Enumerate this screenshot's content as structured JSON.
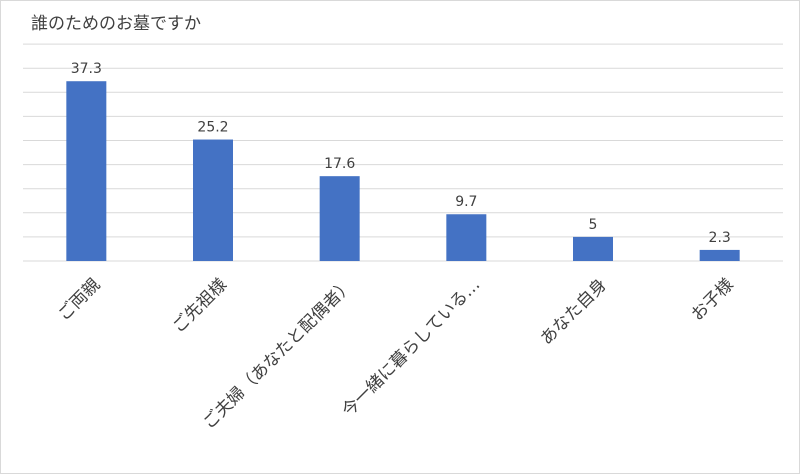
{
  "chart_data": {
    "type": "bar",
    "title": "誰のためのお墓ですか",
    "xlabel": "",
    "ylabel": "",
    "categories": [
      "ご両親",
      "ご先祖様",
      "ご夫婦（あなたと配偶者）",
      "今一緒に暮らしている…",
      "あなた自身",
      "お子様"
    ],
    "values": [
      37.3,
      25.2,
      17.6,
      9.7,
      5,
      2.3
    ],
    "ylim": [
      0,
      45
    ],
    "grid": true,
    "legend": "none",
    "bar_color": "#4472c4",
    "gridline_color": "#d9d9d9"
  }
}
